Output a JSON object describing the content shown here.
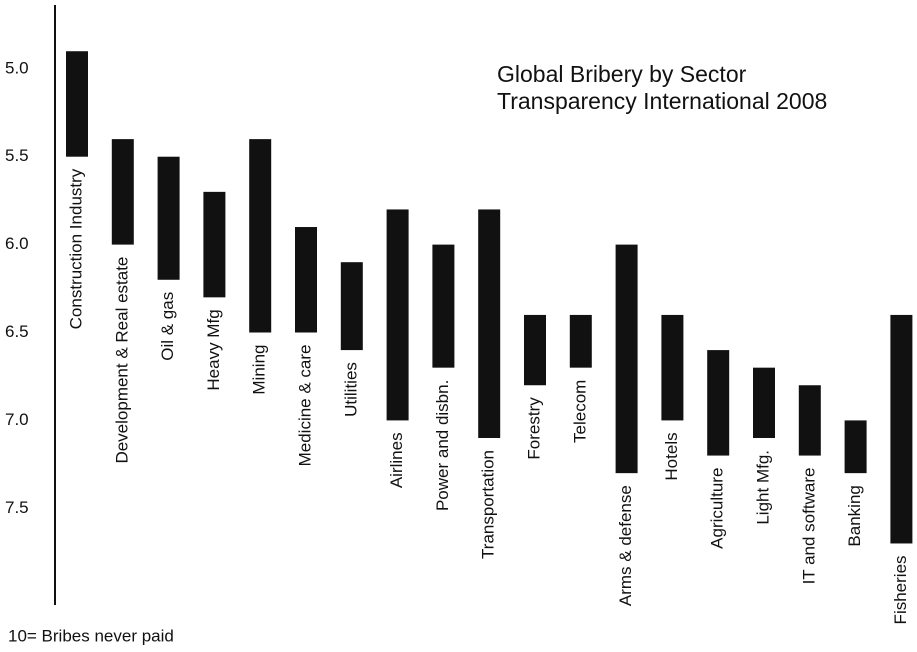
{
  "chart_data": {
    "type": "floating_bar",
    "title": "Global Bribery by Sector",
    "subtitle": "Transparency International 2008",
    "annotation": "10= Bribes never paid",
    "categories": [
      "Construction Industry",
      "Development & Real estate",
      "Oil & gas",
      "Heavy Mfg",
      "Mining",
      "Medicine & care",
      "Utilities",
      "Airlines",
      "Power and disbn.",
      "Transportation",
      "Forestry",
      "Telecom",
      "Arms & defense",
      "Hotels",
      "Agriculture",
      "Light Mfg.",
      "IT and software",
      "Banking",
      "Fisheries"
    ],
    "start": [
      4.9,
      5.4,
      5.5,
      5.7,
      5.4,
      5.9,
      6.1,
      5.8,
      6.0,
      5.8,
      6.4,
      6.4,
      6.0,
      6.4,
      6.6,
      6.7,
      6.8,
      7.0,
      6.4
    ],
    "end": [
      5.5,
      6.0,
      6.2,
      6.3,
      6.5,
      6.5,
      6.6,
      7.0,
      6.7,
      7.1,
      6.8,
      6.7,
      7.3,
      7.0,
      7.2,
      7.1,
      7.2,
      7.3,
      7.7
    ],
    "color": "#111111",
    "ylim": [
      4.62,
      8.05
    ],
    "y_inverted": true,
    "yticks": [
      {
        "value": 5,
        "label": "5.0"
      },
      5.5,
      {
        "value": 6,
        "label": "6.0"
      },
      6.5,
      {
        "value": 7,
        "label": "7.0"
      },
      7.5
    ]
  }
}
